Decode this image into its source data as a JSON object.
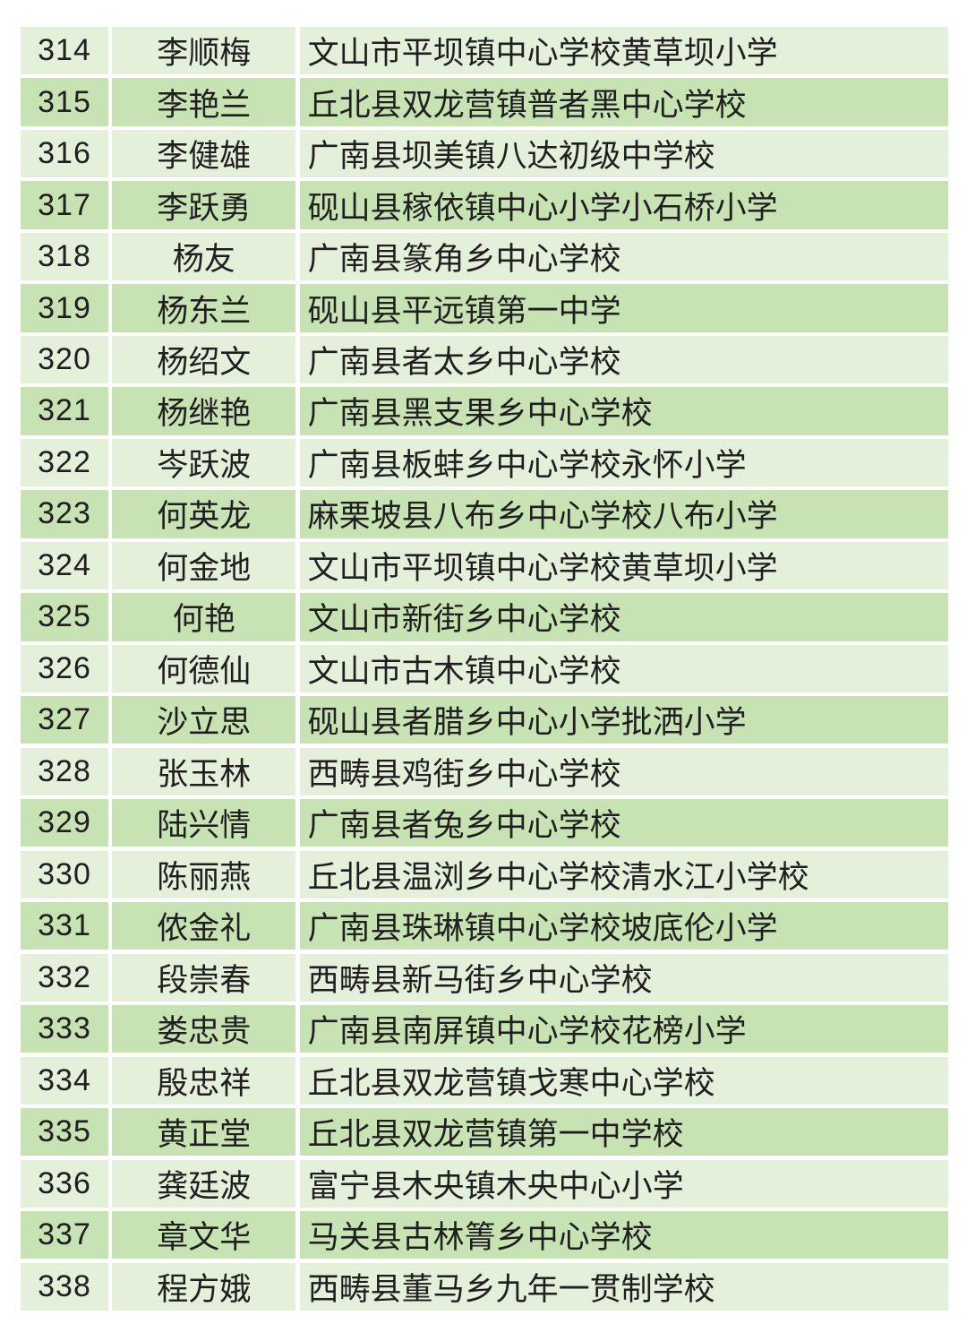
{
  "colors": {
    "row_light": "#e5f0db",
    "row_dark": "#c7e3b4",
    "text": "#1f1f1f",
    "page_background": "#ffffff"
  },
  "table": {
    "rows": [
      {
        "no": "314",
        "name": "李顺梅",
        "school": "文山市平坝镇中心学校黄草坝小学"
      },
      {
        "no": "315",
        "name": "李艳兰",
        "school": "丘北县双龙营镇普者黑中心学校"
      },
      {
        "no": "316",
        "name": "李健雄",
        "school": "广南县坝美镇八达初级中学校"
      },
      {
        "no": "317",
        "name": "李跃勇",
        "school": "砚山县稼依镇中心小学小石桥小学"
      },
      {
        "no": "318",
        "name": "杨友",
        "school": "广南县篆角乡中心学校"
      },
      {
        "no": "319",
        "name": "杨东兰",
        "school": "砚山县平远镇第一中学"
      },
      {
        "no": "320",
        "name": "杨绍文",
        "school": "广南县者太乡中心学校"
      },
      {
        "no": "321",
        "name": "杨继艳",
        "school": "广南县黑支果乡中心学校"
      },
      {
        "no": "322",
        "name": "岑跃波",
        "school": "广南县板蚌乡中心学校永怀小学"
      },
      {
        "no": "323",
        "name": "何英龙",
        "school": "麻栗坡县八布乡中心学校八布小学"
      },
      {
        "no": "324",
        "name": "何金地",
        "school": "文山市平坝镇中心学校黄草坝小学"
      },
      {
        "no": "325",
        "name": "何艳",
        "school": "文山市新街乡中心学校"
      },
      {
        "no": "326",
        "name": "何德仙",
        "school": "文山市古木镇中心学校"
      },
      {
        "no": "327",
        "name": "沙立思",
        "school": "砚山县者腊乡中心小学批洒小学"
      },
      {
        "no": "328",
        "name": "张玉林",
        "school": "西畴县鸡街乡中心学校"
      },
      {
        "no": "329",
        "name": "陆兴情",
        "school": "广南县者兔乡中心学校"
      },
      {
        "no": "330",
        "name": "陈丽燕",
        "school": "丘北县温浏乡中心学校清水江小学校"
      },
      {
        "no": "331",
        "name": "侬金礼",
        "school": "广南县珠琳镇中心学校坡底伦小学"
      },
      {
        "no": "332",
        "name": "段崇春",
        "school": "西畴县新马街乡中心学校"
      },
      {
        "no": "333",
        "name": "娄忠贵",
        "school": "广南县南屏镇中心学校花榜小学"
      },
      {
        "no": "334",
        "name": "殷忠祥",
        "school": "丘北县双龙营镇戈寒中心学校"
      },
      {
        "no": "335",
        "name": "黄正堂",
        "school": "丘北县双龙营镇第一中学校"
      },
      {
        "no": "336",
        "name": "龚廷波",
        "school": "富宁县木央镇木央中心小学"
      },
      {
        "no": "337",
        "name": "章文华",
        "school": "马关县古林箐乡中心学校"
      },
      {
        "no": "338",
        "name": "程方娥",
        "school": "西畴县董马乡九年一贯制学校"
      }
    ]
  }
}
